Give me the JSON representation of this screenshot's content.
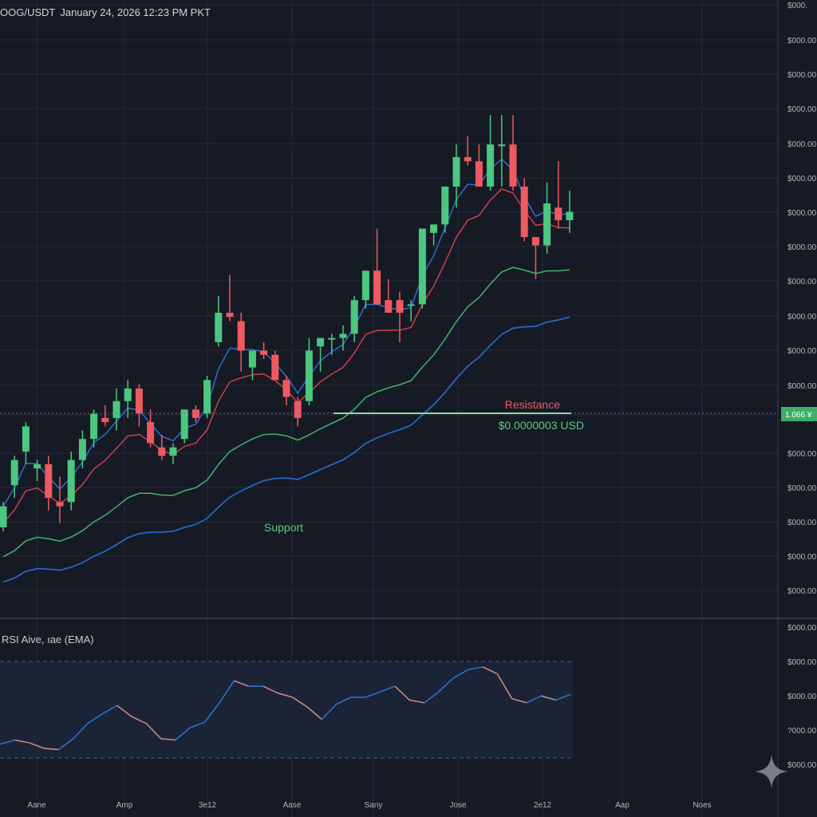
{
  "header": {
    "symbol": "OOG/USDT",
    "datetime": "January 24, 2026 12:23 PM PKT"
  },
  "colors": {
    "background": "#161a25",
    "grid": "#252a37",
    "up": "#4cc77f",
    "down": "#ee5a60",
    "ema_fast": "#2f6dcc",
    "ema_red": "#cf3f48",
    "ema_green": "#46b36a",
    "ema_blue": "#2a63c6",
    "resistance_line": "#8fd9a1",
    "resistance_label": "#e85d62",
    "price_label": "#5ec97f",
    "rsi_up": "#2f6dcc",
    "rsi_down": "#c9877c"
  },
  "chart_data": [
    {
      "type": "candlestick",
      "title": "",
      "x_tick_labels": [
        "Aane",
        "Amp",
        "3e12",
        "Aase",
        "Sany",
        "Jose",
        "2e12",
        "Aap",
        "Noes"
      ],
      "y_tick_labels": [
        "$000.",
        "$000.00",
        "$000.00",
        "$000.00",
        "$000.00",
        "$000.00",
        "$000.00",
        "$000.00",
        "$000.00",
        "$000.00",
        "$000.00",
        "$000.00",
        "$000.00",
        "$000.00",
        "$000.00",
        "$000.00",
        "$000.00",
        "$000.00"
      ],
      "current_price_tag": "1.066 ¥",
      "ylim": [
        0,
        100
      ],
      "candles": [
        {
          "o": 15.0,
          "h": 21.0,
          "l": 14.0,
          "c": 20.0
        },
        {
          "o": 25.0,
          "h": 32.0,
          "l": 22.0,
          "c": 31.0
        },
        {
          "o": 33.0,
          "h": 40.0,
          "l": 30.0,
          "c": 39.0
        },
        {
          "o": 29.0,
          "h": 31.0,
          "l": 26.0,
          "c": 30.0
        },
        {
          "o": 30.0,
          "h": 32.0,
          "l": 19.0,
          "c": 22.0
        },
        {
          "o": 21.0,
          "h": 27.0,
          "l": 16.0,
          "c": 20.0
        },
        {
          "o": 21.0,
          "h": 33.0,
          "l": 19.0,
          "c": 31.0
        },
        {
          "o": 31.0,
          "h": 38.0,
          "l": 29.0,
          "c": 36.0
        },
        {
          "o": 36.0,
          "h": 43.0,
          "l": 34.0,
          "c": 42.0
        },
        {
          "o": 41.0,
          "h": 44.0,
          "l": 39.0,
          "c": 40.0
        },
        {
          "o": 41.0,
          "h": 48.0,
          "l": 38.0,
          "c": 45.0
        },
        {
          "o": 45.0,
          "h": 50.0,
          "l": 41.0,
          "c": 48.0
        },
        {
          "o": 48.0,
          "h": 49.0,
          "l": 39.0,
          "c": 42.0
        },
        {
          "o": 40.0,
          "h": 43.0,
          "l": 34.0,
          "c": 35.0
        },
        {
          "o": 34.0,
          "h": 37.0,
          "l": 31.0,
          "c": 32.0
        },
        {
          "o": 32.0,
          "h": 35.0,
          "l": 30.0,
          "c": 34.0
        },
        {
          "o": 36.0,
          "h": 42.0,
          "l": 35.0,
          "c": 43.0
        },
        {
          "o": 43.0,
          "h": 44.0,
          "l": 40.0,
          "c": 41.0
        },
        {
          "o": 42.0,
          "h": 51.0,
          "l": 41.0,
          "c": 50.0
        },
        {
          "o": 59.0,
          "h": 70.0,
          "l": 58.0,
          "c": 66.0
        },
        {
          "o": 66.0,
          "h": 75.0,
          "l": 64.0,
          "c": 65.0
        },
        {
          "o": 64.0,
          "h": 66.0,
          "l": 52.0,
          "c": 57.0
        },
        {
          "o": 53.0,
          "h": 57.0,
          "l": 50.0,
          "c": 57.0
        },
        {
          "o": 57.0,
          "h": 59.0,
          "l": 55.0,
          "c": 56.0
        },
        {
          "o": 56.0,
          "h": 57.0,
          "l": 50.0,
          "c": 50.0
        },
        {
          "o": 50.0,
          "h": 51.0,
          "l": 44.0,
          "c": 46.0
        },
        {
          "o": 45.0,
          "h": 46.0,
          "l": 39.0,
          "c": 41.0
        },
        {
          "o": 45.0,
          "h": 60.0,
          "l": 44.0,
          "c": 57.0
        },
        {
          "o": 58.0,
          "h": 60.0,
          "l": 52.0,
          "c": 60.0
        },
        {
          "o": 60.0,
          "h": 61.0,
          "l": 56.0,
          "c": 60.0
        },
        {
          "o": 60.0,
          "h": 63.0,
          "l": 57.0,
          "c": 61.0
        },
        {
          "o": 61.0,
          "h": 70.0,
          "l": 59.0,
          "c": 69.0
        },
        {
          "o": 69.0,
          "h": 76.0,
          "l": 67.0,
          "c": 76.0
        },
        {
          "o": 76.0,
          "h": 86.0,
          "l": 68.0,
          "c": 68.0
        },
        {
          "o": 69.0,
          "h": 74.0,
          "l": 66.0,
          "c": 66.0
        },
        {
          "o": 69.0,
          "h": 71.0,
          "l": 59.0,
          "c": 66.0
        },
        {
          "o": 68.0,
          "h": 69.0,
          "l": 64.0,
          "c": 68.0
        },
        {
          "o": 68.0,
          "h": 85.0,
          "l": 67.0,
          "c": 86.0
        },
        {
          "o": 85.0,
          "h": 87.0,
          "l": 82.0,
          "c": 87.0
        },
        {
          "o": 87.0,
          "h": 96.0,
          "l": 85.0,
          "c": 96.0
        },
        {
          "o": 96.0,
          "h": 106.0,
          "l": 91.0,
          "c": 103.0
        },
        {
          "o": 103.0,
          "h": 108.0,
          "l": 101.0,
          "c": 102.0
        },
        {
          "o": 102.0,
          "h": 106.0,
          "l": 96.0,
          "c": 96.0
        },
        {
          "o": 96.0,
          "h": 113.0,
          "l": 95.0,
          "c": 106.0
        },
        {
          "o": 106.0,
          "h": 113.0,
          "l": 96.0,
          "c": 106.0
        },
        {
          "o": 106.0,
          "h": 113.0,
          "l": 95.0,
          "c": 96.0
        },
        {
          "o": 96.0,
          "h": 98.0,
          "l": 83.0,
          "c": 84.0
        },
        {
          "o": 84.0,
          "h": 84.0,
          "l": 74.0,
          "c": 82.0
        },
        {
          "o": 82.0,
          "h": 97.0,
          "l": 80.0,
          "c": 92.0
        },
        {
          "o": 91.0,
          "h": 102.0,
          "l": 86.0,
          "c": 88.0
        },
        {
          "o": 88.0,
          "h": 95.0,
          "l": 85.0,
          "c": 90.0
        }
      ],
      "annotations": {
        "resistance_label": "Resistance",
        "resistance_value": "$0.0000003 USD",
        "support_label": "Support"
      }
    },
    {
      "type": "line",
      "title": "RSI Aive, ıae (EMA)",
      "y_tick_labels": [
        "$000.00",
        "$000.00",
        "$000.00",
        "?000.00",
        "$000.00"
      ],
      "values": [
        40,
        43,
        41,
        37,
        36,
        44,
        55,
        62,
        68,
        60,
        55,
        44,
        43,
        52,
        56,
        70,
        86,
        82,
        82,
        77,
        74,
        67,
        58,
        69,
        74,
        74,
        78,
        82,
        72,
        70,
        78,
        88,
        94,
        96,
        91,
        73,
        70,
        75,
        72,
        76
      ]
    }
  ]
}
